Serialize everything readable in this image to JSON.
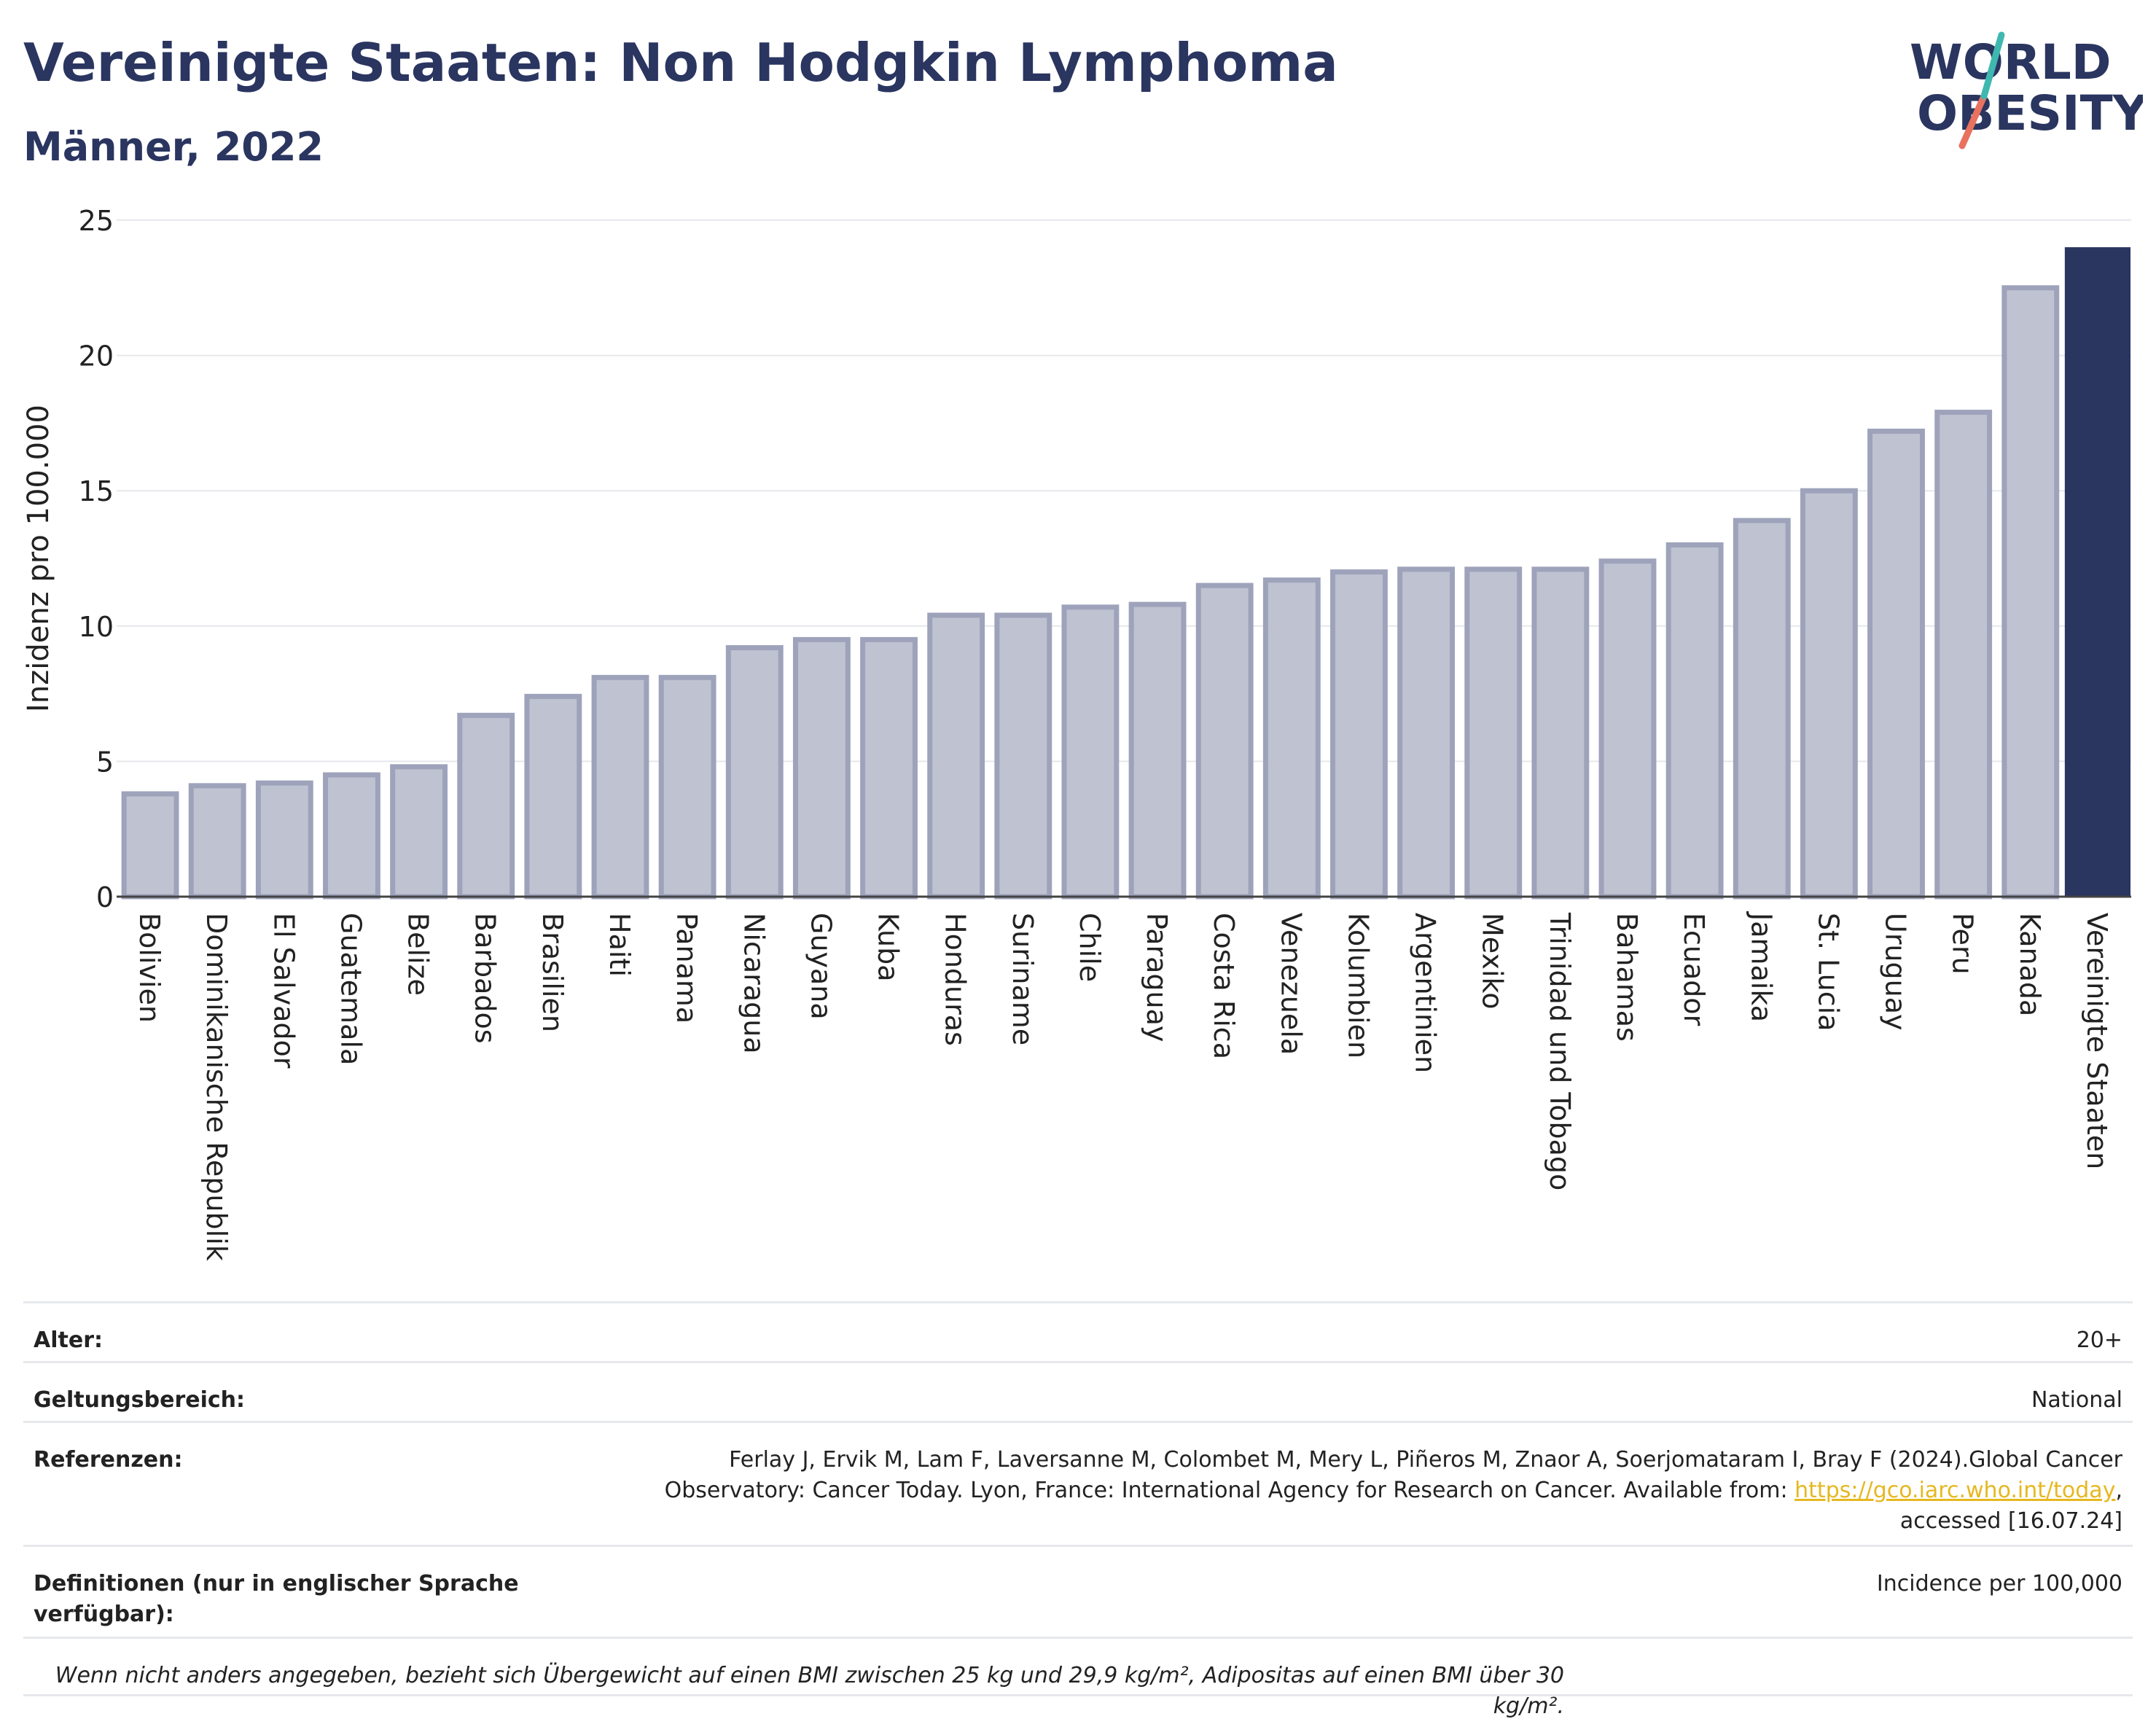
{
  "header": {
    "title": "Vereinigte Staaten: Non Hodgkin Lymphoma",
    "subtitle": "Männer, 2022"
  },
  "logo": {
    "line1": "WORLD",
    "line2": "OBESITY"
  },
  "colors": {
    "bar": "#bfc2d0",
    "bar_border": "#9ea3bb",
    "highlight": "#2a3560",
    "title": "#2a3560",
    "grid": "#e6e8ec"
  },
  "chart_data": {
    "type": "bar",
    "ylabel": "Inzidenz pro 100.000",
    "ylim": [
      0,
      25
    ],
    "yticks": [
      0,
      5,
      10,
      15,
      20,
      25
    ],
    "grid": true,
    "highlight": "Vereinigte Staaten",
    "categories": [
      "Bolivien",
      "Dominikanische Republik",
      "El Salvador",
      "Guatemala",
      "Belize",
      "Barbados",
      "Brasilien",
      "Haiti",
      "Panama",
      "Nicaragua",
      "Guyana",
      "Kuba",
      "Honduras",
      "Suriname",
      "Chile",
      "Paraguay",
      "Costa Rica",
      "Venezuela",
      "Kolumbien",
      "Argentinien",
      "Mexiko",
      "Trinidad und Tobago",
      "Bahamas",
      "Ecuador",
      "Jamaika",
      "St. Lucia",
      "Uruguay",
      "Peru",
      "Kanada",
      "Vereinigte Staaten"
    ],
    "values": [
      3.8,
      4.1,
      4.2,
      4.5,
      4.8,
      6.7,
      7.4,
      8.1,
      8.1,
      9.2,
      9.5,
      9.5,
      10.4,
      10.4,
      10.7,
      10.8,
      11.5,
      11.7,
      12.0,
      12.1,
      12.1,
      12.1,
      12.4,
      13.0,
      13.9,
      15.0,
      17.2,
      17.9,
      22.5,
      24.0
    ]
  },
  "info": {
    "age_label": "Alter:",
    "age_value": "20+",
    "scope_label": "Geltungsbereich:",
    "scope_value": "National",
    "ref_label": "Referenzen:",
    "ref_text1": "Ferlay J, Ervik M, Lam F, Laversanne M, Colombet M, Mery L, Piñeros M, Znaor A, Soerjomataram I, Bray F (2024).Global Cancer Observatory: Cancer Today. Lyon, France: International Agency for Research on Cancer. Available from: ",
    "ref_link": "https://gco.iarc.who.int/today",
    "ref_text2": ", accessed [16.07.24]",
    "def_label": "Definitionen (nur in englischer Sprache verfügbar):",
    "def_value": "Incidence per 100,000",
    "note": "Wenn nicht anders angegeben, bezieht sich Übergewicht auf einen BMI zwischen 25 kg und 29,9 kg/m², Adipositas auf einen BMI über 30 kg/m²."
  }
}
